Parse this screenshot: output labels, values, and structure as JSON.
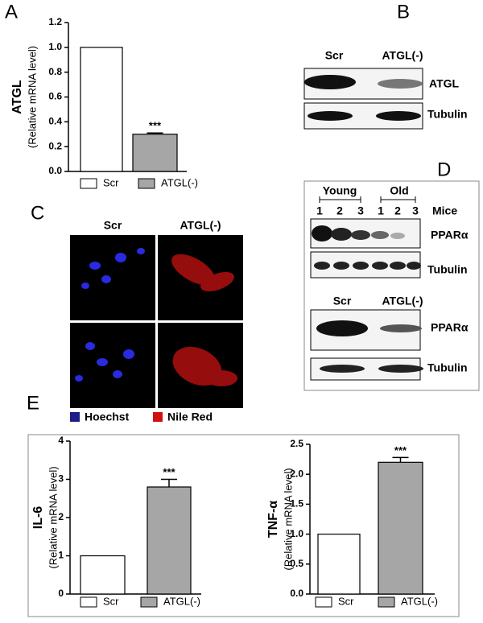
{
  "panel_labels": [
    "A",
    "B",
    "C",
    "D",
    "E"
  ],
  "chart_data": [
    {
      "type": "bar",
      "y_label": "ATGL",
      "y_sublabel": "(Relative mRNA level)",
      "categories": [
        "Scr",
        "ATGL(-)"
      ],
      "values": [
        1.0,
        0.3
      ],
      "errors": [
        null,
        0.01
      ],
      "colors": [
        "#ffffff",
        "#a6a6a6"
      ],
      "value_annotations": [
        null,
        "***"
      ],
      "ylim": [
        0,
        1.2
      ],
      "yticks": [
        {
          "value": 0,
          "label": "0.0"
        },
        0.2,
        0.4,
        0.6,
        0.8,
        {
          "value": 1,
          "label": "1.0"
        },
        1.2
      ]
    },
    {
      "type": "bar",
      "y_label": "IL-6",
      "y_sublabel": "(Relative mRNA level)",
      "categories": [
        "Scr",
        "ATGL(-)"
      ],
      "values": [
        1.0,
        2.8
      ],
      "errors": [
        null,
        0.2
      ],
      "colors": [
        "#ffffff",
        "#a6a6a6"
      ],
      "value_annotations": [
        null,
        "***"
      ],
      "ylim": [
        0,
        4
      ],
      "yticks": [
        0,
        1,
        2,
        3,
        4
      ]
    },
    {
      "type": "bar",
      "y_label": "TNF-α",
      "y_sublabel": "(Relative mRNA level)",
      "categories": [
        "Scr",
        "ATGL(-)"
      ],
      "values": [
        1.0,
        2.2
      ],
      "errors": [
        null,
        0.08
      ],
      "colors": [
        "#ffffff",
        "#a6a6a6"
      ],
      "value_annotations": [
        null,
        "***"
      ],
      "ylim": [
        0,
        2.5
      ],
      "yticks": [
        {
          "value": 0,
          "label": "0.0"
        },
        0.5,
        {
          "value": 1,
          "label": "1.0"
        },
        1.5,
        {
          "value": 2,
          "label": "2.0"
        },
        2.5
      ]
    }
  ],
  "blot_b": {
    "lanes": [
      "Scr",
      "ATGL(-)"
    ],
    "rows": [
      "ATGL",
      "Tubulin"
    ]
  },
  "image_c": {
    "columns": [
      "Scr",
      "ATGL(-)"
    ],
    "legend": [
      "Hoechst",
      "Nile Red"
    ]
  },
  "blot_d": {
    "groups": [
      "Young",
      "Old"
    ],
    "lanes": [
      "1",
      "2",
      "3",
      "1",
      "2",
      "3"
    ],
    "lane_title": "Mice",
    "rows": [
      "PPARα",
      "Tubulin"
    ],
    "lanes2": [
      "Scr",
      "ATGL(-)"
    ],
    "rows2": [
      "PPARα",
      "Tubulin"
    ]
  }
}
